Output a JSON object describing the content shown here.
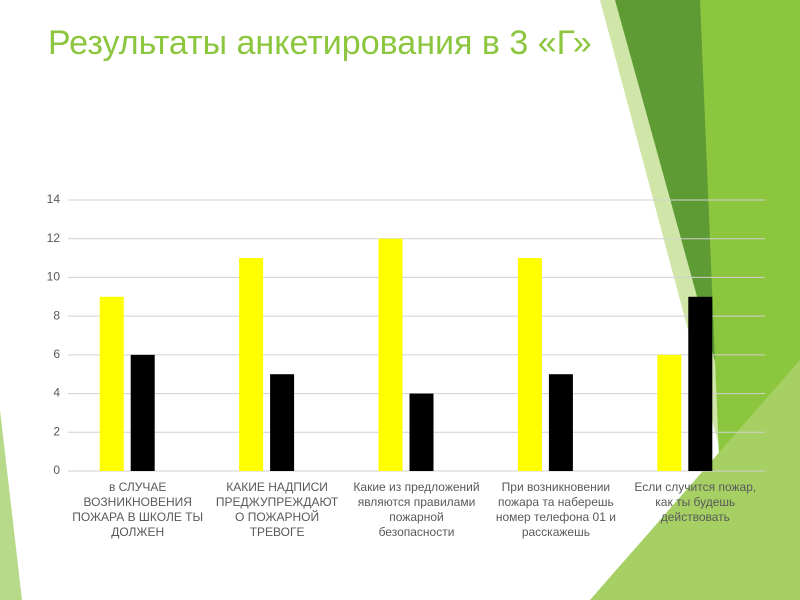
{
  "title": "Результаты анкетирования в 3 «Г»",
  "chart_data": {
    "type": "bar",
    "categories": [
      "в СЛУЧАЕ ВОЗНИКНОВЕНИЯ ПОЖАРА В ШКОЛЕ ТЫ ДОЛЖЕН",
      "КАКИЕ НАДПИСИ ПРЕДЖУПРЕЖДАЮТ О ПОЖАРНОЙ ТРЕВОГЕ",
      "Какие из предложений являются правилами пожарной безопасности",
      "При возникновении пожара та наберешь номер телефона 01 и расскажешь",
      "Если случится пожар, как ты будешь действовать"
    ],
    "series": [
      {
        "color": "#ffff00",
        "values": [
          9,
          11,
          12,
          11,
          6
        ]
      },
      {
        "color": "#000000",
        "values": [
          6,
          5,
          4,
          5,
          9
        ]
      }
    ],
    "ylim": [
      0,
      14
    ],
    "yticks": [
      0,
      2,
      4,
      6,
      8,
      10,
      12,
      14
    ],
    "grid": true
  }
}
